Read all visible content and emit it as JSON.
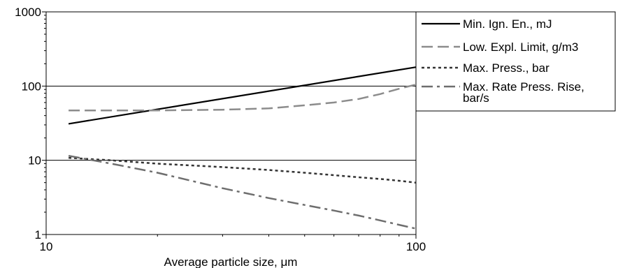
{
  "chart_data": {
    "type": "line",
    "xlabel": "Average particle size, μm",
    "ylabel": "",
    "xscale": "log",
    "yscale": "log",
    "xlim": [
      10,
      100
    ],
    "ylim": [
      1,
      1000
    ],
    "x_ticks": [
      "10",
      "100"
    ],
    "y_ticks": [
      "1",
      "10",
      "100",
      "1000"
    ],
    "grid": "horizontal major lines",
    "legend_position": "right",
    "series": [
      {
        "name": "Min. Ign. En., mJ",
        "legend_lines": [
          "Min. Ign. En., mJ"
        ],
        "style": "solid",
        "color": "#000000",
        "x": [
          11.5,
          100
        ],
        "y": [
          31,
          180
        ]
      },
      {
        "name": "Low. Expl. Limit, g/m3",
        "legend_lines": [
          "Low. Expl. Limit, g/m3"
        ],
        "style": "dashed",
        "color": "#8c8c8c",
        "x": [
          11.5,
          15,
          20,
          30,
          40,
          50,
          60,
          70,
          80,
          90,
          100
        ],
        "y": [
          47,
          47,
          47,
          48,
          50,
          55,
          60,
          67,
          78,
          92,
          105
        ]
      },
      {
        "name": "Max. Press., bar",
        "legend_lines": [
          "Max. Press., bar"
        ],
        "style": "dotted",
        "color": "#333333",
        "x": [
          11.5,
          15,
          20,
          30,
          40,
          50,
          60,
          70,
          80,
          90,
          100
        ],
        "y": [
          10.8,
          10,
          9,
          8.1,
          7.4,
          6.8,
          6.3,
          5.9,
          5.6,
          5.3,
          5.0
        ]
      },
      {
        "name": "Max. Rate Press. Rise, bar/s",
        "legend_lines": [
          "Max. Rate Press. Rise,",
          "bar/s"
        ],
        "style": "dashdot",
        "color": "#6e6e6e",
        "x": [
          11.5,
          15,
          20,
          30,
          40,
          50,
          60,
          70,
          80,
          90,
          100
        ],
        "y": [
          11.5,
          9,
          6.8,
          4.2,
          3.1,
          2.5,
          2.1,
          1.8,
          1.55,
          1.35,
          1.2
        ]
      }
    ]
  }
}
